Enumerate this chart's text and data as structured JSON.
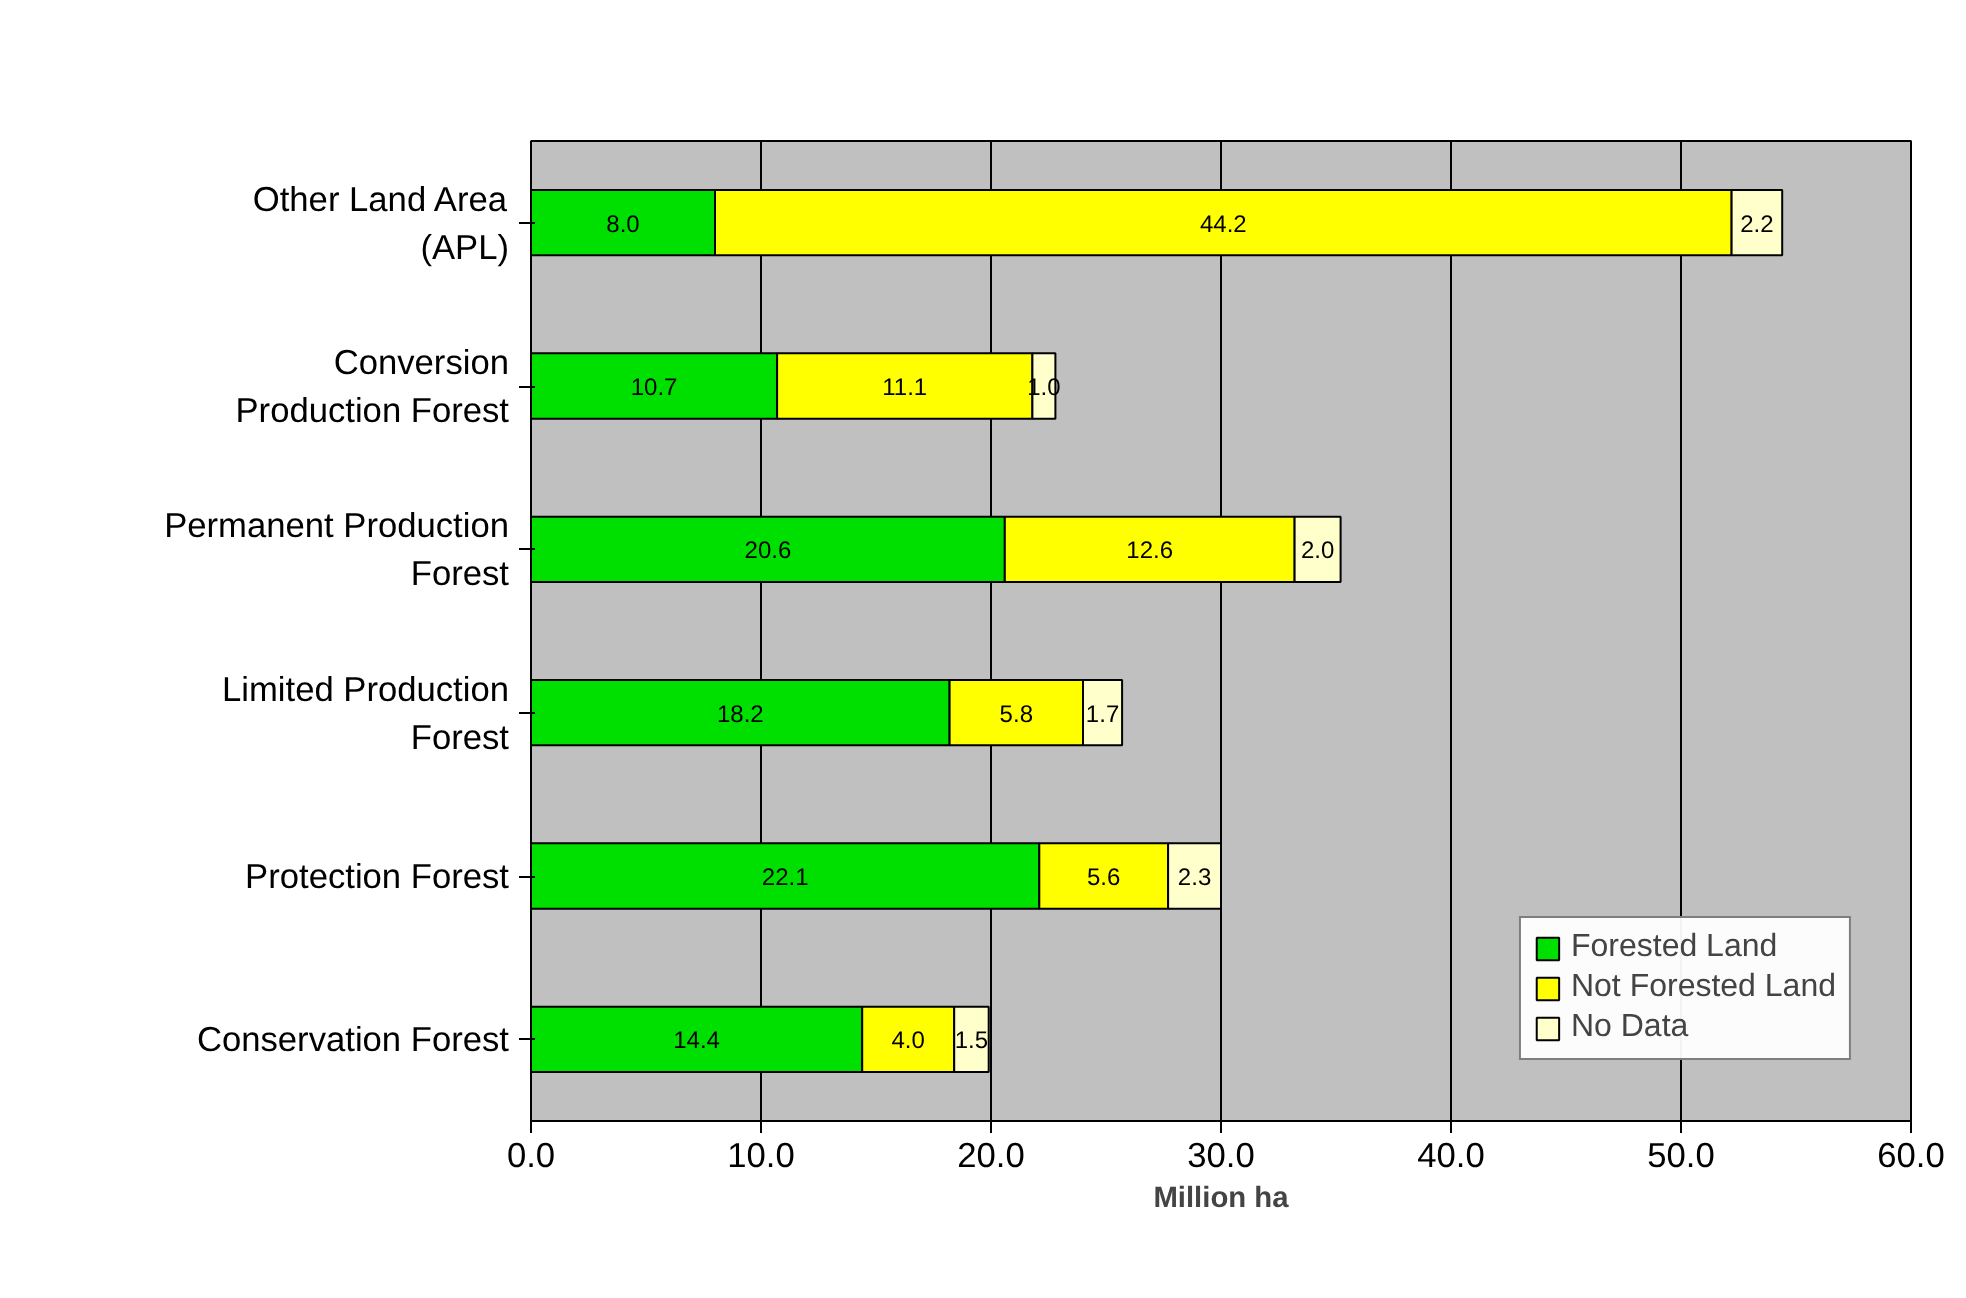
{
  "chart_data": {
    "type": "bar",
    "orientation": "horizontal",
    "stacked": true,
    "xlabel": "Million ha",
    "categories": [
      "Other Land Area\n(APL)",
      "Conversion\nProduction Forest",
      "Permanent Production\nForest",
      "Limited Production\nForest",
      "Protection Forest",
      "Conservation Forest"
    ],
    "series": [
      {
        "name": "Forested Land",
        "color": "#00e000",
        "values": [
          8.0,
          10.7,
          20.6,
          18.2,
          22.1,
          14.4
        ],
        "value_labels": [
          "8.0",
          "10.7",
          "20.6",
          "18.2",
          "22.1",
          "14.4"
        ]
      },
      {
        "name": "Not Forested Land",
        "color": "#ffff00",
        "values": [
          44.2,
          11.1,
          12.6,
          5.8,
          5.6,
          4.0
        ],
        "value_labels": [
          "44.2",
          "11.1",
          "12.6",
          "5.8",
          "5.6",
          "4.0"
        ]
      },
      {
        "name": "No Data",
        "color": "#ffffcc",
        "values": [
          2.2,
          1.0,
          2.0,
          1.7,
          2.3,
          1.5
        ],
        "value_labels": [
          "2.2",
          "1.0",
          "2.0",
          "1.7",
          "2.3",
          "1.5"
        ]
      }
    ],
    "xlim": [
      0,
      60
    ],
    "xticks": [
      {
        "value": 0,
        "label": "0.0"
      },
      {
        "value": 10,
        "label": "10.0"
      },
      {
        "value": 20,
        "label": "20.0"
      },
      {
        "value": 30,
        "label": "30.0"
      },
      {
        "value": 40,
        "label": "40.0"
      },
      {
        "value": 50,
        "label": "50.0"
      },
      {
        "value": 60,
        "label": "60.0"
      }
    ],
    "grid": "x",
    "legend": "bottom right"
  }
}
